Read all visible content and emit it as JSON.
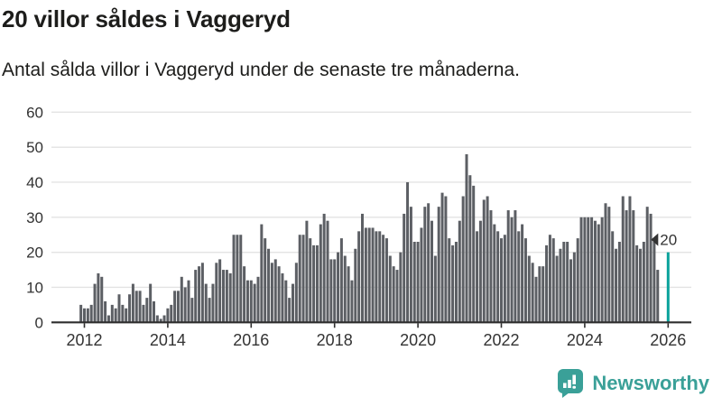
{
  "header": {
    "title": "20 villor såldes i Vaggeryd",
    "subtitle": "Antal sålda villor i Vaggeryd under de senaste tre månaderna."
  },
  "annotation": {
    "last_value_label": "20"
  },
  "branding": {
    "name": "Newsworthy"
  },
  "colors": {
    "bar": "#5c5f64",
    "highlight": "#0aa29b",
    "grid": "#e3e3e3",
    "axis": "#2e2e2e",
    "tick_text": "#333333",
    "annotation_text": "#333333",
    "brand_teal": "#3aa098"
  },
  "chart_data": {
    "type": "bar",
    "title": "20 villor såldes i Vaggeryd",
    "xlabel": "",
    "ylabel": "",
    "ylim": [
      0,
      60
    ],
    "grid": "horizontal",
    "y_ticks": [
      0,
      10,
      20,
      30,
      40,
      50,
      60
    ],
    "x_ticks": [
      2012,
      2014,
      2016,
      2018,
      2020,
      2022,
      2024,
      2026
    ],
    "frequency": "monthly",
    "start_month": "2011-12",
    "highlight_last_bar": true,
    "last_value": 20,
    "values": [
      5,
      4,
      4,
      5,
      11,
      14,
      13,
      6,
      2,
      5,
      4,
      8,
      5,
      4,
      8,
      11,
      9,
      9,
      5,
      7,
      11,
      6,
      2,
      1,
      2,
      4,
      5,
      9,
      9,
      13,
      10,
      12,
      7,
      15,
      16,
      17,
      11,
      7,
      11,
      17,
      18,
      15,
      15,
      14,
      25,
      25,
      25,
      16,
      12,
      12,
      11,
      13,
      28,
      24,
      21,
      17,
      18,
      16,
      14,
      12,
      7,
      11,
      17,
      25,
      25,
      29,
      24,
      22,
      22,
      28,
      31,
      29,
      18,
      18,
      20,
      24,
      19,
      16,
      12,
      21,
      26,
      31,
      27,
      27,
      27,
      26,
      26,
      25,
      24,
      19,
      16,
      15,
      20,
      31,
      40,
      33,
      23,
      23,
      27,
      33,
      34,
      29,
      19,
      33,
      37,
      36,
      24,
      22,
      23,
      29,
      36,
      48,
      42,
      39,
      26,
      29,
      35,
      36,
      32,
      28,
      26,
      24,
      25,
      32,
      30,
      32,
      26,
      28,
      24,
      19,
      17,
      13,
      16,
      16,
      22,
      25,
      24,
      19,
      21,
      23,
      23,
      18,
      20,
      24,
      30,
      30,
      30,
      30,
      29,
      28,
      30,
      34,
      33,
      26,
      21,
      23,
      36,
      32,
      36,
      32,
      22,
      21,
      23,
      33,
      31,
      23,
      15,
      0,
      0,
      20
    ]
  }
}
